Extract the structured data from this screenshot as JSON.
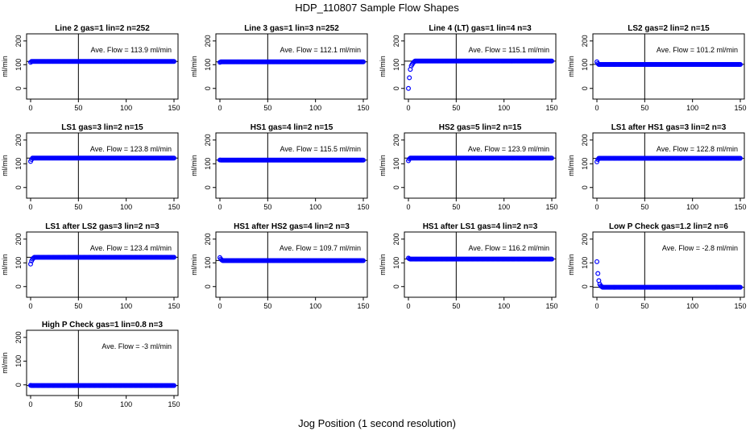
{
  "title": "HDP_110807  Sample Flow Shapes",
  "xlabel": "Jog Position (1 second resolution)",
  "chart_data": [
    {
      "type": "scatter",
      "title": "Line 2 gas=1 lin=2 n=252",
      "ylabel": "ml/min",
      "annotation": "Ave. Flow = 113.9  ml/min",
      "ave": 113.9,
      "start": [
        110
      ],
      "plateau": 113.9,
      "xlim": [
        0,
        150
      ],
      "ylim": [
        0,
        200
      ],
      "xticks": [
        0,
        50,
        100,
        150
      ],
      "yticks": [
        0,
        100,
        200
      ],
      "color": "#0000ff"
    },
    {
      "type": "scatter",
      "title": "Line 3 gas=1 lin=3 n=252",
      "ylabel": "ml/min",
      "annotation": "Ave. Flow = 112.1  ml/min",
      "ave": 112.1,
      "start": [
        110
      ],
      "plateau": 112.1,
      "xlim": [
        0,
        150
      ],
      "ylim": [
        0,
        200
      ],
      "xticks": [
        0,
        50,
        100,
        150
      ],
      "yticks": [
        0,
        100,
        200
      ],
      "color": "#0000ff"
    },
    {
      "type": "scatter",
      "title": "Line 4 (LT) gas=1 lin=4 n=3",
      "ylabel": "ml/min",
      "annotation": "Ave. Flow = 115.1  ml/min",
      "ave": 115.1,
      "start": [
        0,
        45,
        80,
        95,
        102,
        108,
        112
      ],
      "plateau": 115.5,
      "xlim": [
        0,
        150
      ],
      "ylim": [
        0,
        200
      ],
      "xticks": [
        0,
        50,
        100,
        150
      ],
      "yticks": [
        0,
        100,
        200
      ],
      "color": "#0000ff"
    },
    {
      "type": "scatter",
      "title": "LS2 gas=2 lin=2 n=15",
      "ylabel": "ml/min",
      "annotation": "Ave. Flow = 101.2  ml/min",
      "ave": 101.2,
      "start": [
        112,
        105
      ],
      "plateau": 101,
      "xlim": [
        0,
        150
      ],
      "ylim": [
        0,
        200
      ],
      "xticks": [
        0,
        50,
        100,
        150
      ],
      "yticks": [
        0,
        100,
        200
      ],
      "color": "#0000ff"
    },
    {
      "type": "scatter",
      "title": "LS1 gas=3 lin=2 n=15",
      "ylabel": "ml/min",
      "annotation": "Ave. Flow = 123.8  ml/min",
      "ave": 123.8,
      "start": [
        110,
        118
      ],
      "plateau": 124,
      "xlim": [
        0,
        150
      ],
      "ylim": [
        0,
        200
      ],
      "xticks": [
        0,
        50,
        100,
        150
      ],
      "yticks": [
        0,
        100,
        200
      ],
      "color": "#0000ff"
    },
    {
      "type": "scatter",
      "title": "HS1 gas=4 lin=2 n=15",
      "ylabel": "ml/min",
      "annotation": "Ave. Flow = 115.5  ml/min",
      "ave": 115.5,
      "start": [
        116
      ],
      "plateau": 115.5,
      "xlim": [
        0,
        150
      ],
      "ylim": [
        0,
        200
      ],
      "xticks": [
        0,
        50,
        100,
        150
      ],
      "yticks": [
        0,
        100,
        200
      ],
      "color": "#0000ff"
    },
    {
      "type": "scatter",
      "title": "HS2 gas=5 lin=2 n=15",
      "ylabel": "ml/min",
      "annotation": "Ave. Flow = 123.9  ml/min",
      "ave": 123.9,
      "start": [
        113,
        120
      ],
      "plateau": 124,
      "xlim": [
        0,
        150
      ],
      "ylim": [
        0,
        200
      ],
      "xticks": [
        0,
        50,
        100,
        150
      ],
      "yticks": [
        0,
        100,
        200
      ],
      "color": "#0000ff"
    },
    {
      "type": "scatter",
      "title": "LS1 after HS1 gas=3 lin=2 n=3",
      "ylabel": "ml/min",
      "annotation": "Ave. Flow = 122.8  ml/min",
      "ave": 122.8,
      "start": [
        108,
        118
      ],
      "plateau": 123,
      "xlim": [
        0,
        150
      ],
      "ylim": [
        0,
        200
      ],
      "xticks": [
        0,
        50,
        100,
        150
      ],
      "yticks": [
        0,
        100,
        200
      ],
      "color": "#0000ff"
    },
    {
      "type": "scatter",
      "title": "LS1 after LS2 gas=3 lin=2 n=3",
      "ylabel": "ml/min",
      "annotation": "Ave. Flow = 123.4  ml/min",
      "ave": 123.4,
      "start": [
        95,
        108,
        116,
        120
      ],
      "plateau": 123.5,
      "xlim": [
        0,
        150
      ],
      "ylim": [
        0,
        200
      ],
      "xticks": [
        0,
        50,
        100,
        150
      ],
      "yticks": [
        0,
        100,
        200
      ],
      "color": "#0000ff"
    },
    {
      "type": "scatter",
      "title": "HS1 after HS2 gas=4 lin=2 n=3",
      "ylabel": "ml/min",
      "annotation": "Ave. Flow = 109.7  ml/min",
      "ave": 109.7,
      "start": [
        122,
        116,
        112
      ],
      "plateau": 109.5,
      "xlim": [
        0,
        150
      ],
      "ylim": [
        0,
        200
      ],
      "xticks": [
        0,
        50,
        100,
        150
      ],
      "yticks": [
        0,
        100,
        200
      ],
      "color": "#0000ff"
    },
    {
      "type": "scatter",
      "title": "HS1 after LS1 gas=4 lin=2 n=3",
      "ylabel": "ml/min",
      "annotation": "Ave. Flow = 116.2  ml/min",
      "ave": 116.2,
      "start": [
        120,
        117
      ],
      "plateau": 116,
      "xlim": [
        0,
        150
      ],
      "ylim": [
        0,
        200
      ],
      "xticks": [
        0,
        50,
        100,
        150
      ],
      "yticks": [
        0,
        100,
        200
      ],
      "color": "#0000ff"
    },
    {
      "type": "scatter",
      "title": "Low P Check gas=1.2 lin=2 n=6",
      "ylabel": "ml/min",
      "annotation": "Ave. Flow = -2.8 ml/min",
      "ave": -2.8,
      "start": [
        105,
        55,
        25,
        10,
        3,
        0
      ],
      "plateau": -3,
      "xlim": [
        0,
        150
      ],
      "ylim": [
        0,
        200
      ],
      "xticks": [
        0,
        50,
        100,
        150
      ],
      "yticks": [
        0,
        100,
        200
      ],
      "color": "#0000ff"
    },
    {
      "type": "scatter",
      "title": "High P Check gas=1 lin=0.8 n=3",
      "ylabel": "ml/min",
      "annotation": "Ave. Flow = -3  ml/min",
      "ave": -3,
      "start": [
        -2
      ],
      "plateau": -3,
      "xlim": [
        0,
        150
      ],
      "ylim": [
        0,
        200
      ],
      "xticks": [
        0,
        50,
        100,
        150
      ],
      "yticks": [
        0,
        100,
        200
      ],
      "color": "#0000ff"
    }
  ]
}
